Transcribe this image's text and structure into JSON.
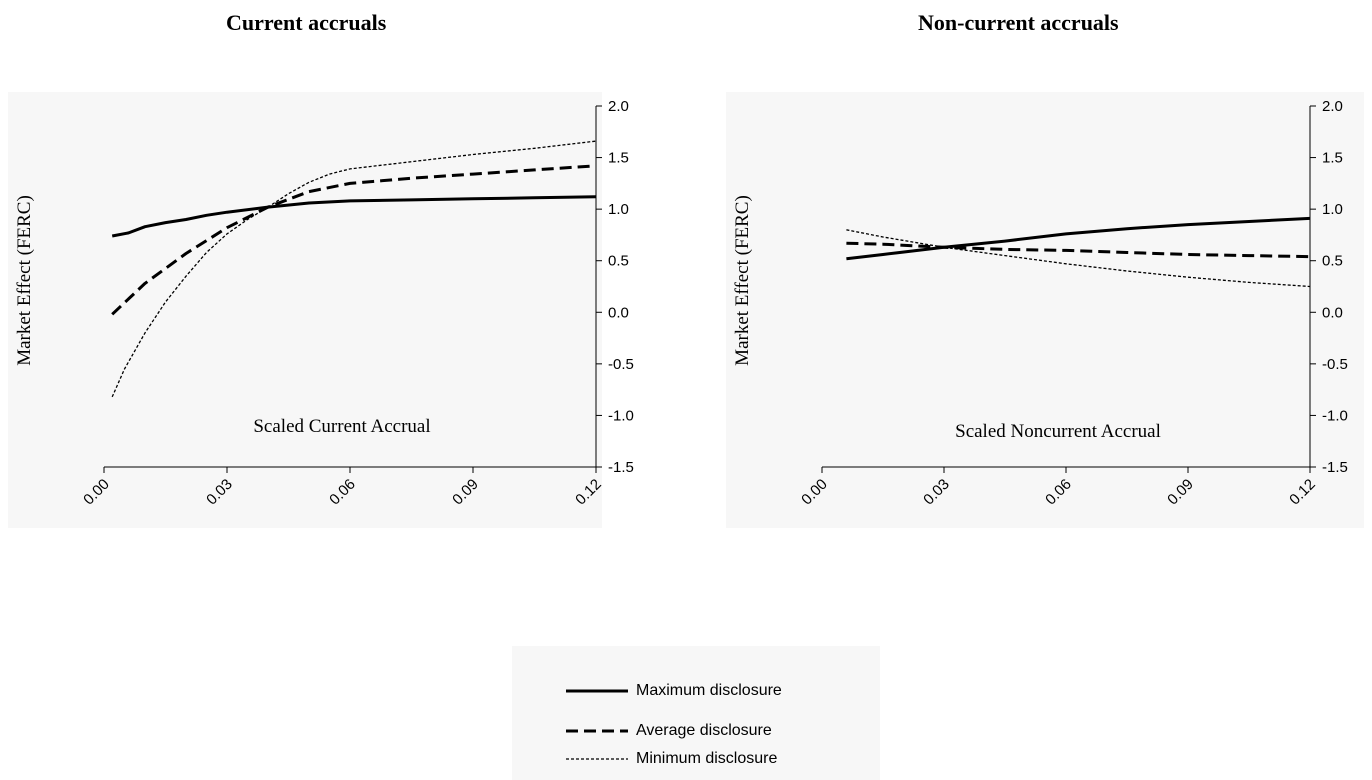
{
  "chart_data": [
    {
      "type": "line",
      "title": "Current accruals",
      "xlabel": "Scaled Current Accrual",
      "ylabel": "Market Effect (FERC)",
      "xlim": [
        0.0,
        0.12
      ],
      "ylim": [
        -1.5,
        2.0
      ],
      "x_ticks": [
        "0.00",
        "0.03",
        "0.06",
        "0.09",
        "0.12"
      ],
      "y_ticks": [
        "2.0",
        "1.5",
        "1.0",
        "0.5",
        "0.0",
        "-0.5",
        "-1.0",
        "-1.5"
      ],
      "y_axis_side": "right",
      "series": [
        {
          "name": "Maximum disclosure",
          "style": "solid-thick",
          "x": [
            0.002,
            0.006,
            0.01,
            0.015,
            0.02,
            0.025,
            0.03,
            0.04,
            0.05,
            0.06,
            0.075,
            0.09,
            0.105,
            0.12
          ],
          "y": [
            0.74,
            0.77,
            0.83,
            0.87,
            0.9,
            0.94,
            0.97,
            1.02,
            1.06,
            1.08,
            1.09,
            1.1,
            1.11,
            1.12
          ]
        },
        {
          "name": "Average disclosure",
          "style": "dashed",
          "x": [
            0.002,
            0.01,
            0.02,
            0.03,
            0.04,
            0.05,
            0.06,
            0.075,
            0.09,
            0.105,
            0.12
          ],
          "y": [
            -0.02,
            0.28,
            0.57,
            0.82,
            1.02,
            1.17,
            1.25,
            1.3,
            1.34,
            1.38,
            1.42
          ]
        },
        {
          "name": "Minimum disclosure",
          "style": "dotted",
          "x": [
            0.002,
            0.005,
            0.01,
            0.015,
            0.02,
            0.025,
            0.03,
            0.035,
            0.04,
            0.045,
            0.05,
            0.055,
            0.06,
            0.075,
            0.09,
            0.105,
            0.12
          ],
          "y": [
            -0.82,
            -0.55,
            -0.2,
            0.1,
            0.35,
            0.58,
            0.76,
            0.9,
            1.02,
            1.15,
            1.26,
            1.34,
            1.39,
            1.46,
            1.53,
            1.59,
            1.66
          ]
        }
      ]
    },
    {
      "type": "line",
      "title": "Non-current accruals",
      "xlabel": "Scaled Noncurrent Accrual",
      "ylabel": "Market Effect (FERC)",
      "xlim": [
        0.0,
        0.12
      ],
      "ylim": [
        -1.5,
        2.0
      ],
      "x_ticks": [
        "0.00",
        "0.03",
        "0.06",
        "0.09",
        "0.12"
      ],
      "y_ticks": [
        "2.0",
        "1.5",
        "1.0",
        "0.5",
        "0.0",
        "-0.5",
        "-1.0",
        "-1.5"
      ],
      "y_axis_side": "right",
      "series": [
        {
          "name": "Maximum disclosure",
          "style": "solid-thick",
          "x": [
            0.006,
            0.015,
            0.03,
            0.045,
            0.06,
            0.075,
            0.09,
            0.105,
            0.12
          ],
          "y": [
            0.52,
            0.56,
            0.63,
            0.69,
            0.76,
            0.81,
            0.85,
            0.88,
            0.91
          ]
        },
        {
          "name": "Average disclosure",
          "style": "dashed",
          "x": [
            0.006,
            0.015,
            0.03,
            0.045,
            0.06,
            0.075,
            0.09,
            0.105,
            0.12
          ],
          "y": [
            0.67,
            0.66,
            0.63,
            0.61,
            0.6,
            0.58,
            0.56,
            0.55,
            0.54
          ]
        },
        {
          "name": "Minimum disclosure",
          "style": "dotted",
          "x": [
            0.006,
            0.015,
            0.03,
            0.045,
            0.06,
            0.075,
            0.09,
            0.105,
            0.12
          ],
          "y": [
            0.8,
            0.73,
            0.63,
            0.55,
            0.47,
            0.4,
            0.34,
            0.29,
            0.25
          ]
        }
      ]
    }
  ],
  "legend": {
    "items": [
      {
        "label": "Maximum disclosure",
        "style": "solid-thick"
      },
      {
        "label": "Average disclosure",
        "style": "dashed"
      },
      {
        "label": "Minimum disclosure",
        "style": "dotted"
      }
    ]
  }
}
